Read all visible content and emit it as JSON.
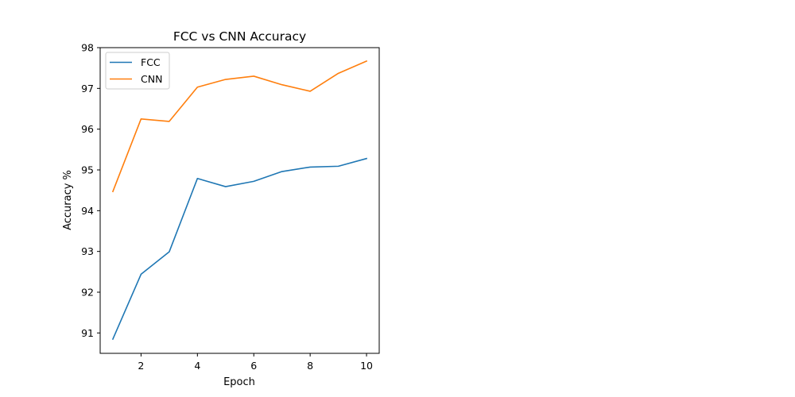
{
  "chart_data": {
    "type": "line",
    "title": "FCC vs CNN Accuracy",
    "xlabel": "Epoch",
    "ylabel": "Accuracy %",
    "x": [
      1,
      2,
      3,
      4,
      5,
      6,
      7,
      8,
      9,
      10
    ],
    "xlim": [
      0.55,
      10.45
    ],
    "ylim": [
      90.5,
      98.0
    ],
    "xticks": [
      2,
      4,
      6,
      8,
      10
    ],
    "yticks": [
      91,
      92,
      93,
      94,
      95,
      96,
      97,
      98
    ],
    "grid": false,
    "legend_position": "top-left",
    "series": [
      {
        "name": "FCC",
        "color": "#1f77b4",
        "values": [
          90.85,
          92.44,
          92.99,
          94.79,
          94.59,
          94.72,
          94.96,
          95.07,
          95.09,
          95.28
        ]
      },
      {
        "name": "CNN",
        "color": "#ff7f0e",
        "values": [
          94.47,
          96.25,
          96.19,
          97.03,
          97.22,
          97.3,
          97.09,
          96.93,
          97.37,
          97.67
        ]
      }
    ]
  }
}
